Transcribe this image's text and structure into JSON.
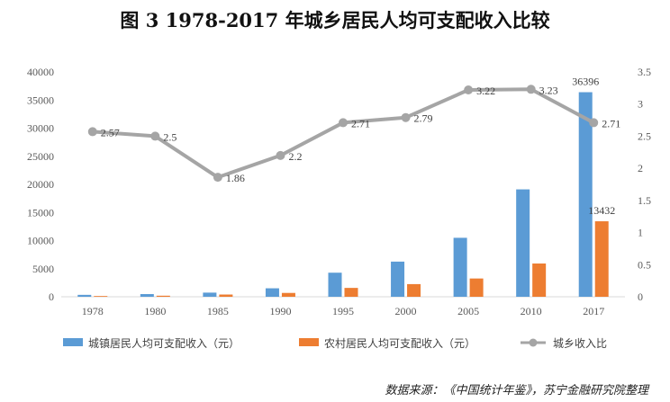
{
  "title": "图 3    1978-2017 年城乡居民人均可支配收入比较",
  "source": "数据来源：《中国统计年鉴》，苏宁金融研究院整理",
  "chart_data": {
    "type": "bar",
    "title": "图 3    1978-2017 年城乡居民人均可支配收入比较",
    "categories": [
      "1978",
      "1980",
      "1985",
      "1990",
      "1995",
      "2000",
      "2005",
      "2010",
      "2017"
    ],
    "y_left_ticks": [
      "0",
      "5000",
      "10000",
      "15000",
      "20000",
      "25000",
      "30000",
      "35000",
      "40000"
    ],
    "y_right_ticks": [
      "0",
      "0.5",
      "1",
      "1.5",
      "2",
      "2.5",
      "3",
      "3.5"
    ],
    "ylim_left": [
      0,
      40000
    ],
    "ylim_right": [
      0,
      3.5
    ],
    "legend_position": "bottom",
    "grid": false,
    "series": [
      {
        "name": "城镇居民人均可支配收入（元）",
        "type": "bar",
        "axis": "left",
        "color": "#5B9BD5",
        "values": [
          343,
          478,
          739,
          1510,
          4283,
          6256,
          10493,
          19109,
          36396
        ],
        "labels": [
          "",
          "",
          "",
          "",
          "",
          "",
          "",
          "",
          "36396"
        ]
      },
      {
        "name": "农村居民人均可支配收入（元）",
        "type": "bar",
        "axis": "left",
        "color": "#ED7D31",
        "values": [
          134,
          191,
          398,
          686,
          1578,
          2253,
          3255,
          5919,
          13432
        ],
        "labels": [
          "",
          "",
          "",
          "",
          "",
          "",
          "",
          "",
          "13432"
        ]
      },
      {
        "name": "城乡收入比",
        "type": "line",
        "axis": "right",
        "color": "#A5A5A5",
        "values": [
          2.57,
          2.5,
          1.86,
          2.2,
          2.71,
          2.79,
          3.22,
          3.23,
          2.71
        ],
        "labels": [
          "2.57",
          "2.5",
          "1.86",
          "2.2",
          "2.71",
          "2.79",
          "3.22",
          "3.23",
          "2.71"
        ]
      }
    ]
  }
}
